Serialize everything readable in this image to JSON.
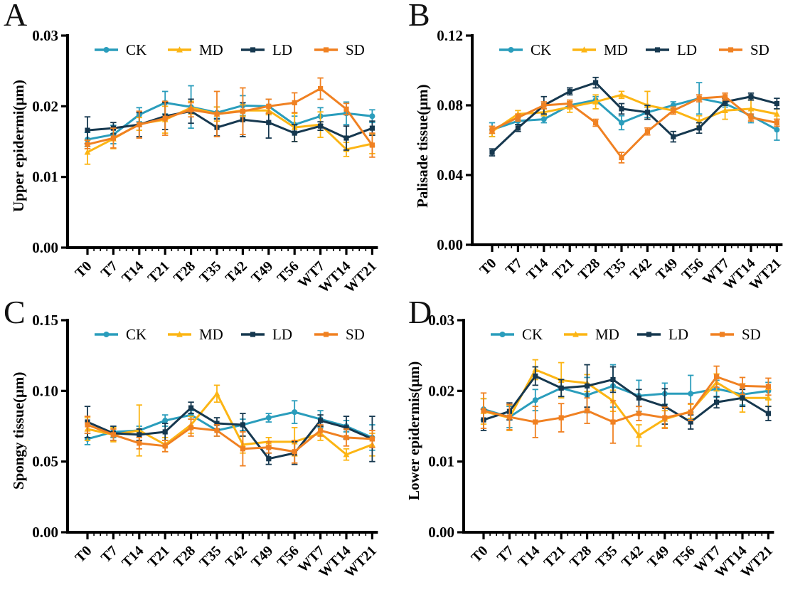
{
  "figure_title": "",
  "legend": {
    "labels": [
      "CK",
      "MD",
      "LD",
      "SD"
    ]
  },
  "colors": {
    "CK": "#2A9DBC",
    "MD": "#FCB514",
    "LD": "#16384F",
    "SD": "#F08122",
    "axis": "#000000",
    "background": "#FFFFFF"
  },
  "categories": [
    "T0",
    "T7",
    "T14",
    "T21",
    "T28",
    "T35",
    "T42",
    "T49",
    "T56",
    "WT7",
    "WT14",
    "WT21"
  ],
  "chart_data": [
    {
      "panel_letter": "A",
      "type": "line",
      "ylabel": "Upper epidermi(μm)",
      "xlabel": "",
      "ylim": [
        0,
        0.03
      ],
      "yticks": [
        "0.00",
        "0.01",
        "0.02",
        "0.03"
      ],
      "ytick_values": [
        0,
        0.01,
        0.02,
        0.03
      ],
      "grid": false,
      "legend_position": "top-inside",
      "categories": [
        "T0",
        "T7",
        "T14",
        "T21",
        "T28",
        "T35",
        "T42",
        "T49",
        "T56",
        "WT7",
        "WT14",
        "WT21"
      ],
      "series": [
        {
          "name": "CK",
          "color": "#2A9DBC",
          "marker": "circle",
          "values": [
            0.0153,
            0.016,
            0.0188,
            0.0205,
            0.0199,
            0.0191,
            0.0201,
            0.02,
            0.0174,
            0.0186,
            0.019,
            0.0186
          ],
          "errors": [
            0.001,
            0.0013,
            0.001,
            0.0016,
            0.003,
            0.0008,
            0.0014,
            0.001,
            0.0012,
            0.0012,
            0.0016,
            0.0009
          ]
        },
        {
          "name": "MD",
          "color": "#FCB514",
          "marker": "triangle",
          "values": [
            0.0135,
            0.0154,
            0.0175,
            0.0181,
            0.0198,
            0.0189,
            0.0194,
            0.0194,
            0.017,
            0.0174,
            0.0139,
            0.0147
          ],
          "errors": [
            0.0017,
            0.0014,
            0.0009,
            0.0019,
            0.0009,
            0.001,
            0.0008,
            0.0006,
            0.002,
            0.0018,
            0.001,
            0.0014
          ]
        },
        {
          "name": "LD",
          "color": "#16384F",
          "marker": "square",
          "values": [
            0.0166,
            0.0169,
            0.0174,
            0.0186,
            0.0193,
            0.017,
            0.0181,
            0.0177,
            0.0162,
            0.0172,
            0.0155,
            0.0169
          ],
          "errors": [
            0.0019,
            0.0008,
            0.0017,
            0.0019,
            0.0017,
            0.0012,
            0.0024,
            0.0022,
            0.0012,
            0.0006,
            0.0017,
            0.001
          ]
        },
        {
          "name": "SD",
          "color": "#F08122",
          "marker": "square",
          "values": [
            0.0146,
            0.0155,
            0.0174,
            0.0183,
            0.0195,
            0.0189,
            0.0193,
            0.02,
            0.0205,
            0.0225,
            0.0196,
            0.0145
          ],
          "errors": [
            0.0006,
            0.0014,
            0.0019,
            0.0024,
            0.001,
            0.0032,
            0.0033,
            0.001,
            0.0014,
            0.0015,
            0.0008,
            0.0017
          ]
        }
      ]
    },
    {
      "panel_letter": "B",
      "type": "line",
      "ylabel": "Palisade tissue(μm)",
      "xlabel": "",
      "ylim": [
        0,
        0.12
      ],
      "yticks": [
        "0.00",
        "0.04",
        "0.08",
        "0.12"
      ],
      "ytick_values": [
        0,
        0.04,
        0.08,
        0.12
      ],
      "grid": false,
      "legend_position": "top-inside",
      "categories": [
        "T0",
        "T7",
        "T14",
        "T21",
        "T28",
        "T35",
        "T42",
        "T49",
        "T56",
        "WT7",
        "WT14",
        "WT21"
      ],
      "series": [
        {
          "name": "CK",
          "color": "#2A9DBC",
          "marker": "circle",
          "values": [
            0.066,
            0.071,
            0.072,
            0.08,
            0.083,
            0.07,
            0.076,
            0.08,
            0.084,
            0.081,
            0.074,
            0.066
          ],
          "errors": [
            0.004,
            0.002,
            0.002,
            0.002,
            0.002,
            0.004,
            0.003,
            0.002,
            0.009,
            0.002,
            0.004,
            0.006
          ]
        },
        {
          "name": "MD",
          "color": "#FCB514",
          "marker": "triangle",
          "values": [
            0.065,
            0.075,
            0.076,
            0.079,
            0.082,
            0.086,
            0.08,
            0.077,
            0.071,
            0.077,
            0.078,
            0.075
          ],
          "errors": [
            0.003,
            0.002,
            0.002,
            0.003,
            0.004,
            0.002,
            0.008,
            0.002,
            0.003,
            0.005,
            0.005,
            0.003
          ]
        },
        {
          "name": "LD",
          "color": "#16384F",
          "marker": "square",
          "values": [
            0.053,
            0.067,
            0.08,
            0.088,
            0.093,
            0.078,
            0.076,
            0.062,
            0.067,
            0.082,
            0.085,
            0.081
          ],
          "errors": [
            0.002,
            0.002,
            0.005,
            0.002,
            0.003,
            0.003,
            0.004,
            0.003,
            0.003,
            0.002,
            0.002,
            0.003
          ]
        },
        {
          "name": "SD",
          "color": "#F08122",
          "marker": "square",
          "values": [
            0.066,
            0.073,
            0.08,
            0.081,
            0.07,
            0.05,
            0.065,
            0.077,
            0.084,
            0.085,
            0.073,
            0.07
          ],
          "errors": [
            0.002,
            0.002,
            0.002,
            0.002,
            0.002,
            0.003,
            0.002,
            0.002,
            0.002,
            0.002,
            0.002,
            0.002
          ]
        }
      ]
    },
    {
      "panel_letter": "C",
      "type": "line",
      "ylabel": "Spongy tissue(μm)",
      "xlabel": "",
      "ylim": [
        0,
        0.15
      ],
      "yticks": [
        "0.00",
        "0.05",
        "0.10",
        "0.15"
      ],
      "ytick_values": [
        0,
        0.05,
        0.1,
        0.15
      ],
      "grid": false,
      "legend_position": "top-inside",
      "categories": [
        "T0",
        "T7",
        "T14",
        "T21",
        "T28",
        "T35",
        "T42",
        "T49",
        "T56",
        "WT7",
        "WT14",
        "WT21"
      ],
      "series": [
        {
          "name": "CK",
          "color": "#2A9DBC",
          "marker": "circle",
          "values": [
            0.066,
            0.071,
            0.072,
            0.079,
            0.083,
            0.072,
            0.076,
            0.081,
            0.085,
            0.08,
            0.075,
            0.067
          ],
          "errors": [
            0.004,
            0.004,
            0.003,
            0.004,
            0.003,
            0.004,
            0.004,
            0.003,
            0.008,
            0.006,
            0.004,
            0.009
          ]
        },
        {
          "name": "MD",
          "color": "#FCB514",
          "marker": "triangle",
          "values": [
            0.073,
            0.069,
            0.072,
            0.062,
            0.076,
            0.098,
            0.062,
            0.064,
            0.064,
            0.07,
            0.055,
            0.062
          ],
          "errors": [
            0.008,
            0.005,
            0.018,
            0.005,
            0.006,
            0.006,
            0.006,
            0.003,
            0.01,
            0.005,
            0.004,
            0.008
          ]
        },
        {
          "name": "LD",
          "color": "#16384F",
          "marker": "square",
          "values": [
            0.078,
            0.07,
            0.069,
            0.071,
            0.088,
            0.077,
            0.076,
            0.052,
            0.056,
            0.079,
            0.074,
            0.066
          ],
          "errors": [
            0.011,
            0.005,
            0.004,
            0.006,
            0.004,
            0.004,
            0.008,
            0.004,
            0.008,
            0.004,
            0.008,
            0.016
          ]
        },
        {
          "name": "SD",
          "color": "#F08122",
          "marker": "square",
          "values": [
            0.076,
            0.069,
            0.063,
            0.061,
            0.074,
            0.072,
            0.059,
            0.06,
            0.057,
            0.072,
            0.067,
            0.066
          ],
          "errors": [
            0.006,
            0.004,
            0.004,
            0.004,
            0.006,
            0.004,
            0.012,
            0.004,
            0.008,
            0.004,
            0.006,
            0.006
          ]
        }
      ]
    },
    {
      "panel_letter": "D",
      "type": "line",
      "ylabel": "Lower epidermis(μm)",
      "xlabel": "",
      "ylim": [
        0,
        0.03
      ],
      "yticks": [
        "0.00",
        "0.01",
        "0.02",
        "0.03"
      ],
      "ytick_values": [
        0,
        0.01,
        0.02,
        0.03
      ],
      "grid": false,
      "legend_position": "top-inside",
      "categories": [
        "T0",
        "T7",
        "T14",
        "T21",
        "T28",
        "T35",
        "T42",
        "T49",
        "T56",
        "WT7",
        "WT14",
        "WT21"
      ],
      "series": [
        {
          "name": "CK",
          "color": "#2A9DBC",
          "marker": "circle",
          "values": [
            0.0174,
            0.0163,
            0.0187,
            0.0204,
            0.0194,
            0.0207,
            0.0193,
            0.0196,
            0.0196,
            0.0203,
            0.0195,
            0.02
          ],
          "errors": [
            0.0015,
            0.0015,
            0.0015,
            0.0012,
            0.0025,
            0.003,
            0.0022,
            0.0015,
            0.0026,
            0.0012,
            0.0015,
            0.0012
          ]
        },
        {
          "name": "MD",
          "color": "#FCB514",
          "marker": "triangle",
          "values": [
            0.0171,
            0.0162,
            0.023,
            0.0215,
            0.0211,
            0.0186,
            0.0137,
            0.016,
            0.0171,
            0.0212,
            0.019,
            0.019
          ],
          "errors": [
            0.0018,
            0.0018,
            0.0014,
            0.0025,
            0.0012,
            0.0015,
            0.0015,
            0.0012,
            0.001,
            0.0012,
            0.002,
            0.0012
          ]
        },
        {
          "name": "LD",
          "color": "#16384F",
          "marker": "square",
          "values": [
            0.0159,
            0.0171,
            0.0221,
            0.0204,
            0.0207,
            0.0216,
            0.019,
            0.0178,
            0.0156,
            0.0184,
            0.019,
            0.0168
          ],
          "errors": [
            0.0015,
            0.0012,
            0.0013,
            0.0012,
            0.003,
            0.0018,
            0.0012,
            0.0025,
            0.001,
            0.0008,
            0.0012,
            0.001
          ]
        },
        {
          "name": "SD",
          "color": "#F08122",
          "marker": "square",
          "values": [
            0.0172,
            0.0163,
            0.0156,
            0.0162,
            0.0172,
            0.0156,
            0.0168,
            0.0162,
            0.017,
            0.022,
            0.0207,
            0.0206
          ],
          "errors": [
            0.0025,
            0.0018,
            0.0022,
            0.002,
            0.0018,
            0.003,
            0.001,
            0.0015,
            0.0012,
            0.0015,
            0.0012,
            0.0012
          ]
        }
      ]
    }
  ]
}
